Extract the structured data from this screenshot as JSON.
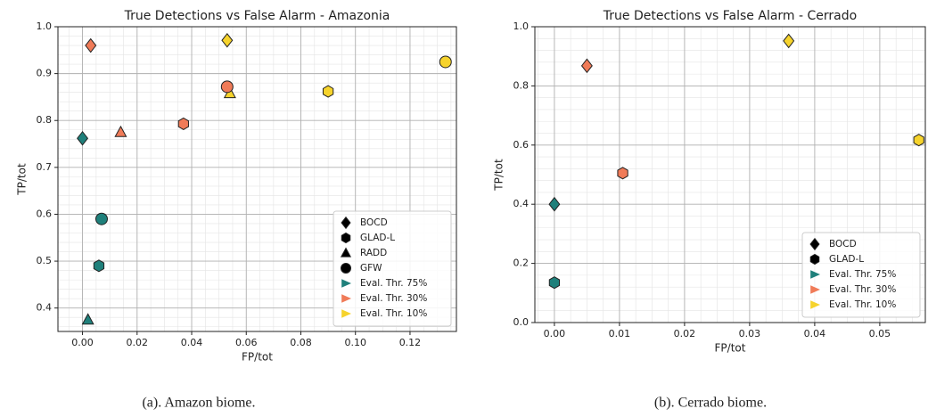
{
  "chart_data": [
    {
      "type": "scatter",
      "title": "True Detections vs False Alarm - Amazonia",
      "xlabel": "FP/tot",
      "ylabel": "TP/tot",
      "caption": "(a). Amazon biome.",
      "xlim": [
        -0.009,
        0.137
      ],
      "ylim": [
        0.35,
        1.0
      ],
      "xticks": [
        {
          "value": 0,
          "label": "0.00"
        },
        {
          "value": 0.02,
          "label": "0.02"
        },
        {
          "value": 0.04,
          "label": "0.04"
        },
        {
          "value": 0.06,
          "label": "0.06"
        },
        {
          "value": 0.08,
          "label": "0.08"
        },
        {
          "value": 0.1,
          "label": "0.10"
        },
        {
          "value": 0.12,
          "label": "0.12"
        }
      ],
      "yticks": [
        0.4,
        0.5,
        0.6,
        0.7,
        0.8,
        0.9,
        {
          "value": 1.0,
          "label": "1.0"
        }
      ],
      "grid": true,
      "minor_grid": true,
      "legend": "lower right",
      "series": [
        {
          "name": "BOCD",
          "marker": "diamond",
          "x": [
            0.0,
            0.003,
            0.053
          ],
          "values": [
            0.762,
            0.96,
            0.971
          ],
          "colors": [
            "#1f807b",
            "#f07b58",
            "#f6d32c"
          ]
        },
        {
          "name": "GLAD-L",
          "marker": "hexagon",
          "x": [
            0.006,
            0.037,
            0.09
          ],
          "values": [
            0.49,
            0.793,
            0.862
          ],
          "colors": [
            "#1f807b",
            "#f07b58",
            "#f6d32c"
          ]
        },
        {
          "name": "RADD",
          "marker": "triangle",
          "x": [
            0.002,
            0.014,
            0.054
          ],
          "values": [
            0.375,
            0.775,
            0.858
          ],
          "colors": [
            "#1f807b",
            "#f07b58",
            "#f6d32c"
          ]
        },
        {
          "name": "GFW",
          "marker": "circle",
          "x": [
            0.007,
            0.053,
            0.133
          ],
          "values": [
            0.59,
            0.872,
            0.925
          ],
          "colors": [
            "#1f807b",
            "#f07b58",
            "#f6d32c"
          ]
        }
      ],
      "thresholds": [
        {
          "name": "Eval. Thr. 75%",
          "color": "#1f807b"
        },
        {
          "name": "Eval. Thr. 30%",
          "color": "#f07b58"
        },
        {
          "name": "Eval. Thr. 10%",
          "color": "#f6d32c"
        }
      ]
    },
    {
      "type": "scatter",
      "title": "True Detections vs False Alarm - Cerrado",
      "xlabel": "FP/tot",
      "ylabel": "TP/tot",
      "caption": "(b). Cerrado biome.",
      "xlim": [
        -0.003,
        0.057
      ],
      "ylim": [
        0.0,
        1.0
      ],
      "xticks": [
        {
          "value": 0,
          "label": "0.00"
        },
        {
          "value": 0.01,
          "label": "0.01"
        },
        {
          "value": 0.02,
          "label": "0.02"
        },
        {
          "value": 0.03,
          "label": "0.03"
        },
        {
          "value": 0.04,
          "label": "0.04"
        },
        {
          "value": 0.05,
          "label": "0.05"
        }
      ],
      "yticks": [
        {
          "value": 0,
          "label": "0.0"
        },
        0.2,
        0.4,
        0.6,
        0.8,
        {
          "value": 1.0,
          "label": "1.0"
        }
      ],
      "grid": true,
      "minor_grid": true,
      "legend": "lower right",
      "series": [
        {
          "name": "BOCD",
          "marker": "diamond",
          "x": [
            0.0,
            0.005,
            0.036
          ],
          "values": [
            0.4,
            0.868,
            0.952
          ],
          "colors": [
            "#1f807b",
            "#f07b58",
            "#f6d32c"
          ]
        },
        {
          "name": "GLAD-L",
          "marker": "hexagon",
          "x": [
            0.0,
            0.0105,
            0.056
          ],
          "values": [
            0.135,
            0.505,
            0.617
          ],
          "colors": [
            "#1f807b",
            "#f07b58",
            "#f6d32c"
          ]
        }
      ],
      "thresholds": [
        {
          "name": "Eval. Thr. 75%",
          "color": "#1f807b"
        },
        {
          "name": "Eval. Thr. 30%",
          "color": "#f07b58"
        },
        {
          "name": "Eval. Thr. 10%",
          "color": "#f6d32c"
        }
      ]
    }
  ]
}
